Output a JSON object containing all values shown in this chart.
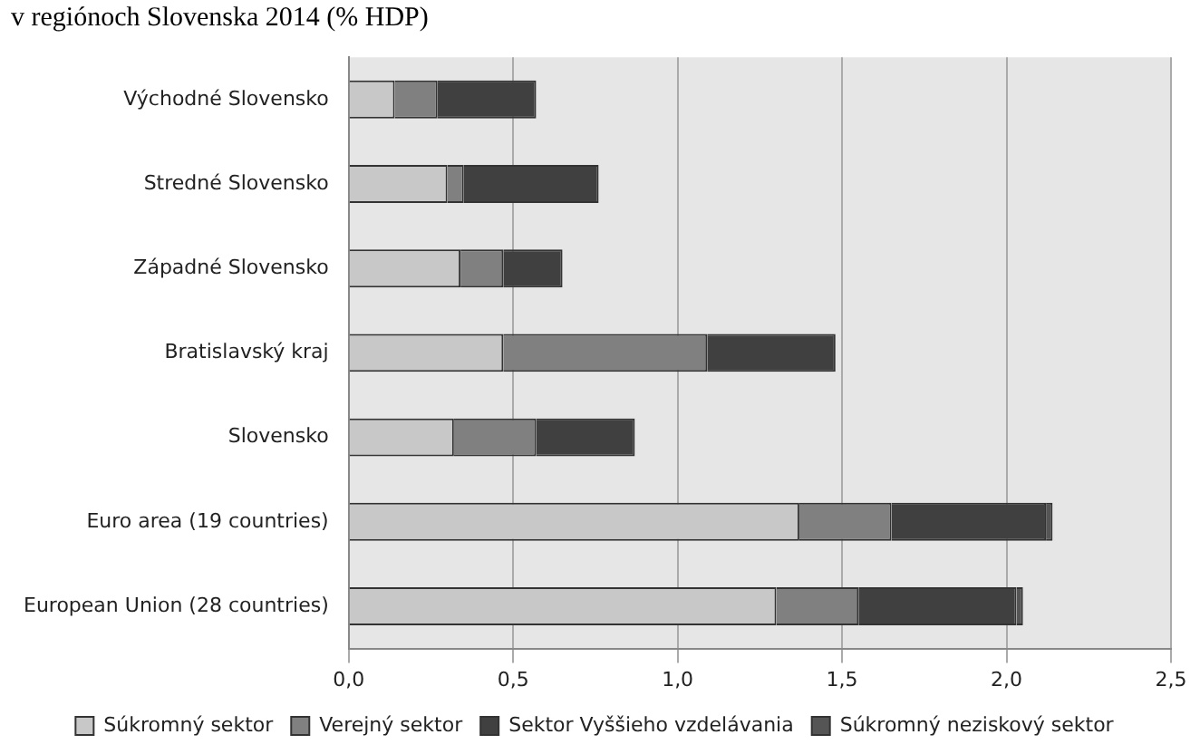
{
  "chart_data": {
    "type": "bar",
    "orientation": "horizontal",
    "stacked": true,
    "title": "v regiónoch Slovenska 2014 (% HDP)",
    "categories": [
      "Východné Slovensko",
      "Stredné Slovensko",
      "Západné Slovensko",
      "Bratislavský kraj",
      "Slovensko",
      "Euro area (19 countries)",
      "European Union (28 countries)"
    ],
    "series": [
      {
        "name": "Súkromný sektor",
        "color": "#c8c8c8",
        "values": [
          0.14,
          0.3,
          0.34,
          0.47,
          0.32,
          1.37,
          1.3
        ]
      },
      {
        "name": "Verejný sektor",
        "color": "#808080",
        "values": [
          0.13,
          0.05,
          0.13,
          0.62,
          0.25,
          0.28,
          0.25
        ]
      },
      {
        "name": "Sektor Vyššieho vzdelávania",
        "color": "#404040",
        "values": [
          0.3,
          0.41,
          0.18,
          0.39,
          0.3,
          0.47,
          0.48
        ]
      },
      {
        "name": "Súkromný neziskový sektor",
        "color": "#555555",
        "values": [
          0,
          0,
          0,
          0,
          0,
          0.02,
          0.02
        ]
      }
    ],
    "xlim": [
      0,
      2.5
    ],
    "xticks": [
      {
        "value": 0,
        "label": "0,0"
      },
      {
        "value": 0.5,
        "label": "0,5"
      },
      {
        "value": 1,
        "label": "1,0"
      },
      {
        "value": 1.5,
        "label": "1,5"
      },
      {
        "value": 2,
        "label": "2,0"
      },
      {
        "value": 2.5,
        "label": "2,5"
      }
    ],
    "grid": "x",
    "legend": "bottom"
  }
}
